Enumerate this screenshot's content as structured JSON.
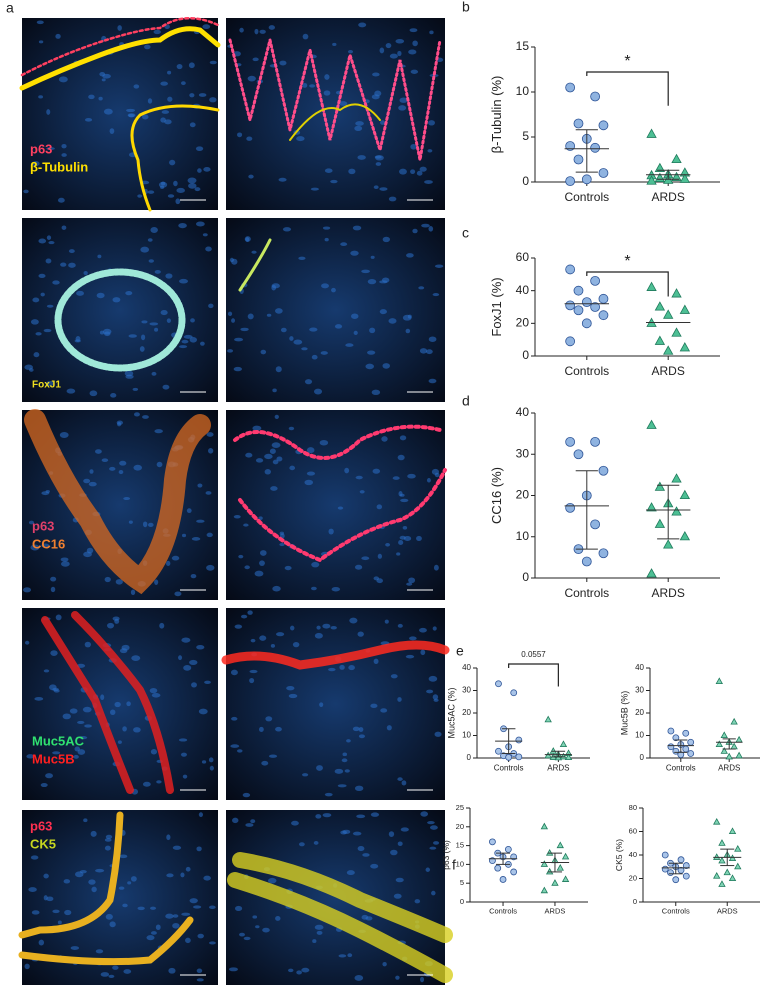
{
  "micrographs": {
    "panel": "a",
    "labels": [
      {
        "text": "p63",
        "color": "#ff4060"
      },
      {
        "text": "β-Tubulin",
        "color": "#ffe000"
      },
      {
        "text": "FoxJ1",
        "color": "#f0e020"
      },
      {
        "text": "p63",
        "color": "#e0406a"
      },
      {
        "text": "CC16",
        "color": "#f08030"
      },
      {
        "text": "Muc5AC",
        "color": "#30e070"
      },
      {
        "text": "Muc5B",
        "color": "#ff2020"
      },
      {
        "text": "p63",
        "color": "#ff3050"
      },
      {
        "text": "CK5",
        "color": "#c8d820"
      }
    ]
  },
  "chart_data": [
    {
      "type": "scatter",
      "panel": "b",
      "ylabel": "β-Tubulin (%)",
      "categories": [
        "Controls",
        "ARDS"
      ],
      "ylim": [
        0,
        15
      ],
      "yticks": [
        0,
        5,
        10,
        15
      ],
      "annotation": "*",
      "series": [
        {
          "color": "#8fb3e0",
          "edge": "#2f5597",
          "marker": "circle",
          "values": [
            10.5,
            9.5,
            6.5,
            6.3,
            4.8,
            4.0,
            3.8,
            2.5,
            1.0,
            0.3,
            0.1
          ],
          "center": 3.7,
          "lower": 1.1,
          "upper": 5.8
        },
        {
          "color": "#4dbf94",
          "edge": "#1f7a5c",
          "marker": "triangle",
          "values": [
            5.3,
            2.5,
            1.5,
            1.0,
            0.8,
            0.7,
            0.5,
            0.4,
            0.3,
            0.2,
            0.1
          ],
          "center": 0.8,
          "lower": 0.3,
          "upper": 1.3
        }
      ]
    },
    {
      "type": "scatter",
      "panel": "c",
      "ylabel": "FoxJ1 (%)",
      "categories": [
        "Controls",
        "ARDS"
      ],
      "ylim": [
        0,
        60
      ],
      "yticks": [
        0,
        20,
        40,
        60
      ],
      "annotation": "*",
      "series": [
        {
          "color": "#8fb3e0",
          "edge": "#2f5597",
          "marker": "circle",
          "values": [
            53,
            46,
            40,
            35,
            33,
            31,
            30,
            28,
            25,
            20,
            9
          ],
          "center": 32
        },
        {
          "color": "#4dbf94",
          "edge": "#1f7a5c",
          "marker": "triangle",
          "values": [
            42,
            38,
            30,
            28,
            25,
            20,
            14,
            9,
            5,
            3
          ],
          "center": 20.5
        }
      ]
    },
    {
      "type": "scatter",
      "panel": "d",
      "ylabel": "CC16 (%)",
      "categories": [
        "Controls",
        "ARDS"
      ],
      "ylim": [
        0,
        40
      ],
      "yticks": [
        0,
        10,
        20,
        30,
        40
      ],
      "series": [
        {
          "color": "#8fb3e0",
          "edge": "#2f5597",
          "marker": "circle",
          "values": [
            33,
            33,
            30,
            26,
            20,
            17,
            13,
            7,
            6,
            4
          ],
          "center": 17.5,
          "lower": 7,
          "upper": 26
        },
        {
          "color": "#4dbf94",
          "edge": "#1f7a5c",
          "marker": "triangle",
          "values": [
            37,
            24,
            22,
            20,
            18,
            17,
            16,
            13,
            10,
            8,
            1
          ],
          "center": 16.5,
          "lower": 9.5,
          "upper": 22.5
        }
      ]
    },
    {
      "type": "scatter",
      "panel": "e",
      "ylabel": "Muc5AC (%)",
      "categories": [
        "Controls",
        "ARDS"
      ],
      "ylim": [
        0,
        40
      ],
      "yticks": [
        0,
        10,
        20,
        30,
        40
      ],
      "annotation": "0.0557",
      "series": [
        {
          "color": "#a9c4e8",
          "edge": "#2f5597",
          "marker": "circle",
          "values": [
            33,
            29,
            13,
            8,
            5,
            3,
            2,
            1,
            0.5,
            0.3
          ],
          "center": 7.5,
          "lower": 2,
          "upper": 13
        },
        {
          "color": "#7fd3b4",
          "edge": "#1f7a5c",
          "marker": "triangle",
          "values": [
            17,
            6,
            3,
            2,
            1.5,
            1,
            0.5,
            0.3,
            0.2,
            0.1
          ],
          "center": 1.5,
          "lower": 0.5,
          "upper": 3
        }
      ]
    },
    {
      "type": "scatter",
      "ylabel": "Muc5B (%)",
      "categories": [
        "Controls",
        "ARDS"
      ],
      "ylim": [
        0,
        40
      ],
      "yticks": [
        0,
        10,
        20,
        30,
        40
      ],
      "series": [
        {
          "color": "#a9c4e8",
          "edge": "#2f5597",
          "marker": "circle",
          "values": [
            12,
            11,
            9,
            7,
            6,
            5,
            4,
            3,
            2,
            1.5
          ],
          "center": 5.5,
          "lower": 2.5,
          "upper": 8
        },
        {
          "color": "#7fd3b4",
          "edge": "#1f7a5c",
          "marker": "triangle",
          "values": [
            34,
            16,
            10,
            8,
            7,
            6,
            5,
            3,
            1,
            0.5
          ],
          "center": 7,
          "lower": 4,
          "upper": 8.5
        }
      ]
    },
    {
      "type": "scatter",
      "panel": "f",
      "ylabel": "p63 (%)",
      "categories": [
        "Controls",
        "ARDS"
      ],
      "ylim": [
        0,
        25
      ],
      "yticks": [
        0,
        5,
        10,
        15,
        20,
        25
      ],
      "series": [
        {
          "color": "#a9c4e8",
          "edge": "#2f5597",
          "marker": "circle",
          "values": [
            16,
            14,
            13,
            12,
            12,
            11,
            10,
            9,
            8,
            6
          ],
          "center": 11.5,
          "lower": 10,
          "upper": 13
        },
        {
          "color": "#7fd3b4",
          "edge": "#1f7a5c",
          "marker": "triangle",
          "values": [
            20,
            15,
            13,
            12,
            11,
            10,
            9,
            8,
            6,
            5,
            3
          ],
          "center": 10.5,
          "lower": 8,
          "upper": 13
        }
      ]
    },
    {
      "type": "scatter",
      "ylabel": "CK5 (%)",
      "categories": [
        "Controls",
        "ARDS"
      ],
      "ylim": [
        0,
        80
      ],
      "yticks": [
        0,
        20,
        40,
        60,
        80
      ],
      "series": [
        {
          "color": "#a9c4e8",
          "edge": "#2f5597",
          "marker": "circle",
          "values": [
            40,
            36,
            33,
            31,
            30,
            28,
            27,
            25,
            22,
            19
          ],
          "center": 29,
          "lower": 24,
          "upper": 33
        },
        {
          "color": "#7fd3b4",
          "edge": "#1f7a5c",
          "marker": "triangle",
          "values": [
            68,
            60,
            50,
            45,
            40,
            38,
            37,
            35,
            30,
            25,
            22,
            20,
            15
          ],
          "center": 38,
          "lower": 31,
          "upper": 45
        }
      ]
    }
  ]
}
